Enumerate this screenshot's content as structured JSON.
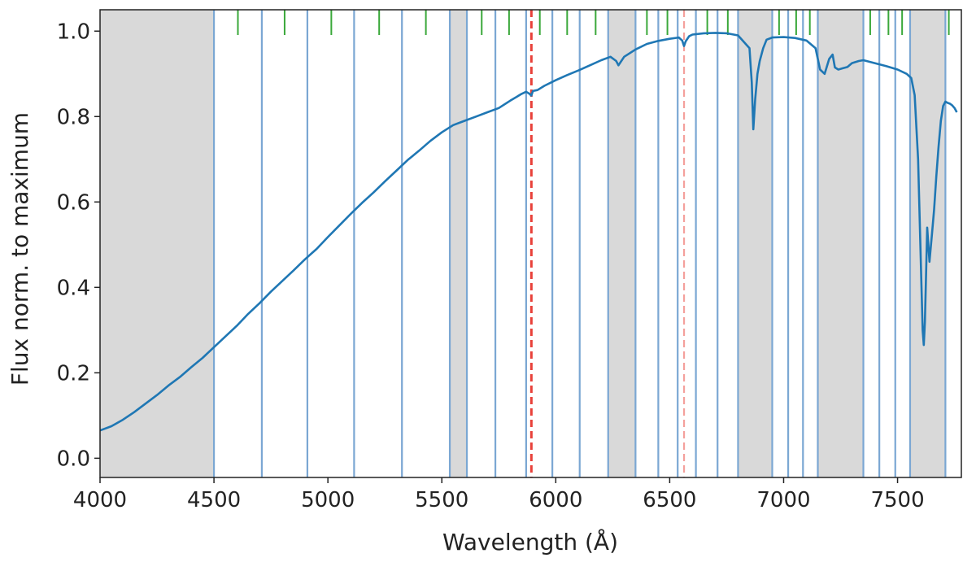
{
  "chart_data": {
    "type": "line",
    "xlabel": "Wavelength (Å)",
    "ylabel": "Flux norm. to maximum",
    "xlim": [
      4000,
      7780
    ],
    "ylim": [
      -0.045,
      1.05
    ],
    "x_ticks": [
      4000,
      4500,
      5000,
      5500,
      6000,
      6500,
      7000,
      7500
    ],
    "y_ticks": [
      0.0,
      0.2,
      0.4,
      0.6,
      0.8,
      1.0
    ],
    "y_tick_labels": [
      "0.0",
      "0.2",
      "0.4",
      "0.6",
      "0.8",
      "1.0"
    ],
    "grid": false,
    "colors": {
      "spectrum": "#1f77b4",
      "shaded_region": "#d9d9d9",
      "band_edge": "#7ba7d3",
      "marker_tick": "#3aa83a",
      "reference_line_dark": "#e8413a",
      "reference_line_light": "#f4a09c"
    },
    "shaded_regions": [
      [
        4000,
        4500
      ],
      [
        5535,
        5610
      ],
      [
        6230,
        6350
      ],
      [
        6800,
        6950
      ],
      [
        7150,
        7350
      ],
      [
        7555,
        7710
      ]
    ],
    "band_edges": [
      4500,
      4710,
      4910,
      5115,
      5325,
      5535,
      5610,
      5735,
      5870,
      5985,
      6105,
      6230,
      6350,
      6450,
      6535,
      6615,
      6710,
      6800,
      6950,
      7020,
      7085,
      7150,
      7350,
      7420,
      7490,
      7555,
      7710
    ],
    "marker_ticks": [
      4605,
      4810,
      5015,
      5225,
      5430,
      5675,
      5795,
      5930,
      6050,
      6175,
      6400,
      6490,
      6665,
      6755,
      6980,
      7055,
      7115,
      7380,
      7460,
      7520,
      7725
    ],
    "reference_lines": [
      {
        "x": 5893,
        "style": "dark"
      },
      {
        "x": 6563,
        "style": "light"
      }
    ],
    "series": [
      {
        "x": [
          4000,
          4050,
          4100,
          4150,
          4200,
          4250,
          4300,
          4350,
          4400,
          4450,
          4500,
          4550,
          4600,
          4650,
          4700,
          4750,
          4800,
          4850,
          4900,
          4950,
          5000,
          5050,
          5100,
          5150,
          5200,
          5250,
          5300,
          5350,
          5400,
          5450,
          5500,
          5550,
          5600,
          5650,
          5700,
          5750,
          5800,
          5850,
          5870,
          5885,
          5893,
          5900,
          5920,
          5950,
          6000,
          6050,
          6100,
          6150,
          6200,
          6240,
          6265,
          6275,
          6300,
          6350,
          6400,
          6450,
          6500,
          6540,
          6555,
          6563,
          6570,
          6585,
          6600,
          6650,
          6700,
          6750,
          6800,
          6850,
          6860,
          6867,
          6875,
          6885,
          6895,
          6910,
          6925,
          6950,
          7000,
          7050,
          7100,
          7140,
          7160,
          7180,
          7200,
          7215,
          7225,
          7240,
          7260,
          7280,
          7300,
          7330,
          7350,
          7400,
          7450,
          7500,
          7540,
          7560,
          7575,
          7590,
          7600,
          7610,
          7615,
          7620,
          7630,
          7635,
          7640,
          7645,
          7652,
          7660,
          7670,
          7680,
          7690,
          7700,
          7710,
          7720,
          7730,
          7740,
          7750,
          7760
        ],
        "y": [
          0.065,
          0.075,
          0.09,
          0.108,
          0.128,
          0.148,
          0.17,
          0.19,
          0.213,
          0.235,
          0.26,
          0.285,
          0.31,
          0.338,
          0.363,
          0.39,
          0.415,
          0.44,
          0.466,
          0.49,
          0.518,
          0.545,
          0.572,
          0.598,
          0.622,
          0.648,
          0.673,
          0.698,
          0.72,
          0.743,
          0.763,
          0.78,
          0.79,
          0.8,
          0.81,
          0.82,
          0.837,
          0.853,
          0.858,
          0.853,
          0.849,
          0.86,
          0.862,
          0.872,
          0.885,
          0.897,
          0.908,
          0.92,
          0.932,
          0.94,
          0.93,
          0.92,
          0.94,
          0.957,
          0.97,
          0.977,
          0.982,
          0.985,
          0.978,
          0.965,
          0.976,
          0.988,
          0.992,
          0.995,
          0.996,
          0.995,
          0.99,
          0.96,
          0.88,
          0.77,
          0.84,
          0.9,
          0.93,
          0.96,
          0.98,
          0.985,
          0.986,
          0.984,
          0.978,
          0.96,
          0.91,
          0.9,
          0.935,
          0.945,
          0.915,
          0.91,
          0.913,
          0.916,
          0.925,
          0.93,
          0.932,
          0.925,
          0.918,
          0.91,
          0.9,
          0.89,
          0.85,
          0.7,
          0.5,
          0.3,
          0.265,
          0.32,
          0.54,
          0.5,
          0.46,
          0.49,
          0.53,
          0.58,
          0.66,
          0.73,
          0.79,
          0.825,
          0.835,
          0.832,
          0.83,
          0.826,
          0.82,
          0.81
        ]
      }
    ]
  }
}
